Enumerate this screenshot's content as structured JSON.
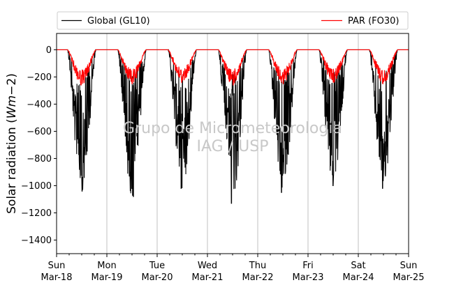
{
  "chart_data": {
    "type": "line",
    "ylabel": "Solar radiation (Wm−2)",
    "ylim": [
      -1500,
      120
    ],
    "yticks": [
      0,
      -200,
      -400,
      -600,
      -800,
      -1000,
      -1200,
      -1400
    ],
    "xlim": [
      0,
      7
    ],
    "x_unit": "days since Sun Mar-18 00:00",
    "xticks": [
      {
        "day": "Sun",
        "date": "Mar-18"
      },
      {
        "day": "Mon",
        "date": "Mar-19"
      },
      {
        "day": "Tue",
        "date": "Mar-20"
      },
      {
        "day": "Wed",
        "date": "Mar-21"
      },
      {
        "day": "Thu",
        "date": "Mar-22"
      },
      {
        "day": "Fri",
        "date": "Mar-23"
      },
      {
        "day": "Sat",
        "date": "Mar-24"
      },
      {
        "day": "Sun",
        "date": "Mar-25"
      }
    ],
    "minor_ticks_per_day": 4,
    "vertical_grid": true,
    "legend_position": "top, above plot",
    "watermark": [
      "Grupo de Micrometeorologia",
      "IAG / USP"
    ],
    "series": [
      {
        "name": "Global (GL10)",
        "color": "#000000",
        "daily_min": [
          -1040,
          -1080,
          -1020,
          -1130,
          -1050,
          -1000,
          -1020
        ]
      },
      {
        "name": "PAR (FO30)",
        "color": "#ff0000",
        "daily_min": [
          -260,
          -250,
          -240,
          -260,
          -250,
          -240,
          -250
        ]
      }
    ]
  }
}
